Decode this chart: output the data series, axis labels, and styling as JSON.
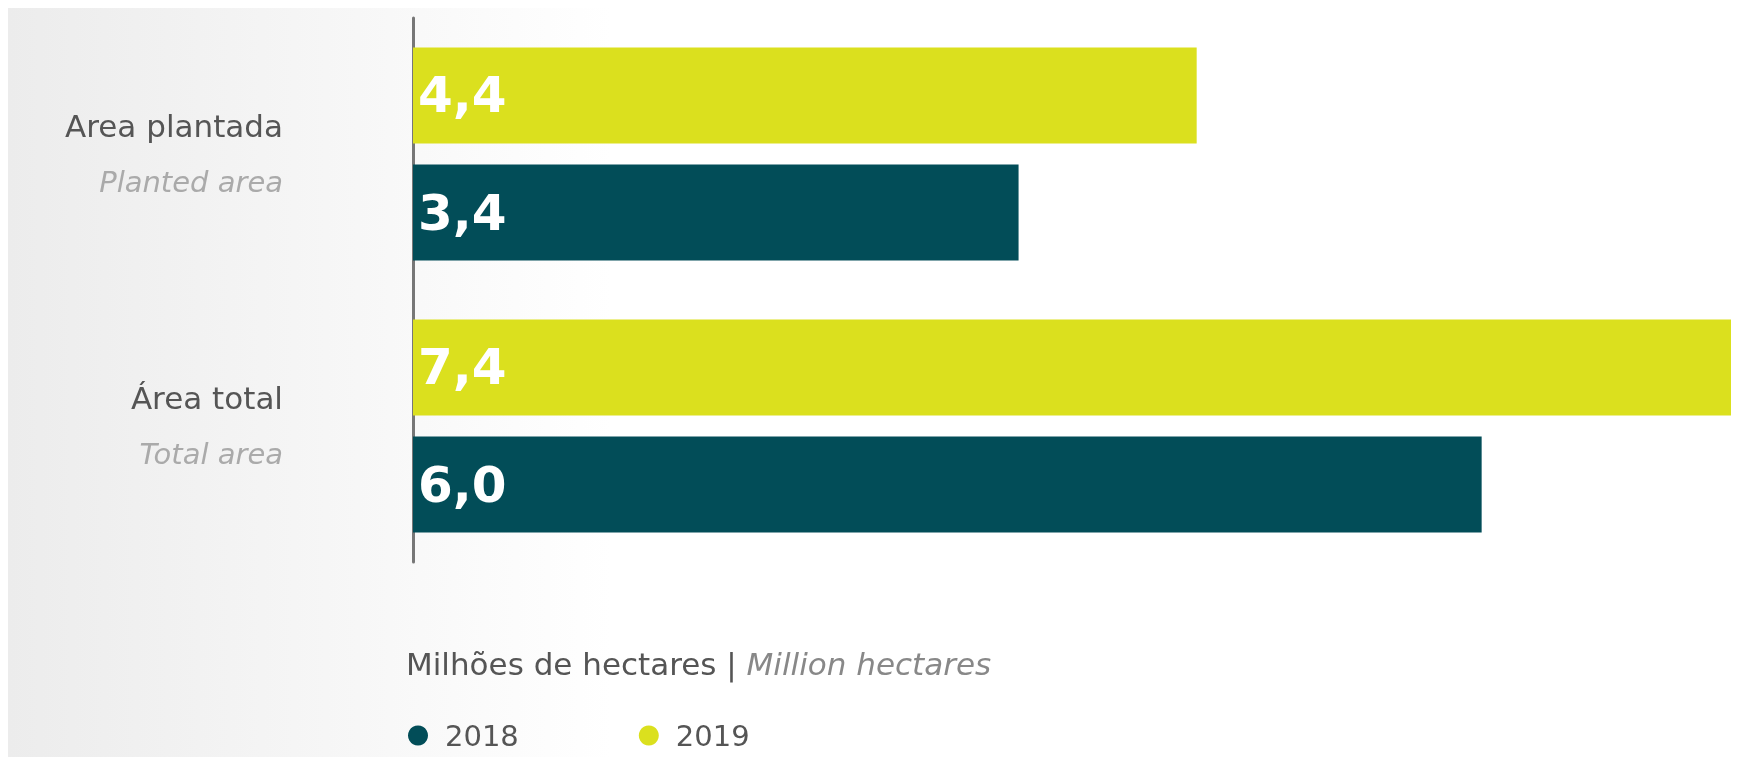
{
  "chart_data": {
    "type": "bar",
    "orientation": "horizontal",
    "tick_labels": "y",
    "categories": [
      "Area plantada\nPlanted area",
      "Área total\nTotal area"
    ],
    "xlabel": "Milhões de hectares | Million hectares",
    "series": [
      {
        "name": "2018",
        "color": "#024d58",
        "values": [
          3.4,
          6.0
        ],
        "value_labels": [
          "3,4",
          "6,0"
        ]
      },
      {
        "name": "2019",
        "color": "#dbe01e",
        "values": [
          4.4,
          7.4
        ],
        "value_labels": [
          "4,4",
          "7,4"
        ]
      }
    ],
    "legend": "bottom left"
  }
}
